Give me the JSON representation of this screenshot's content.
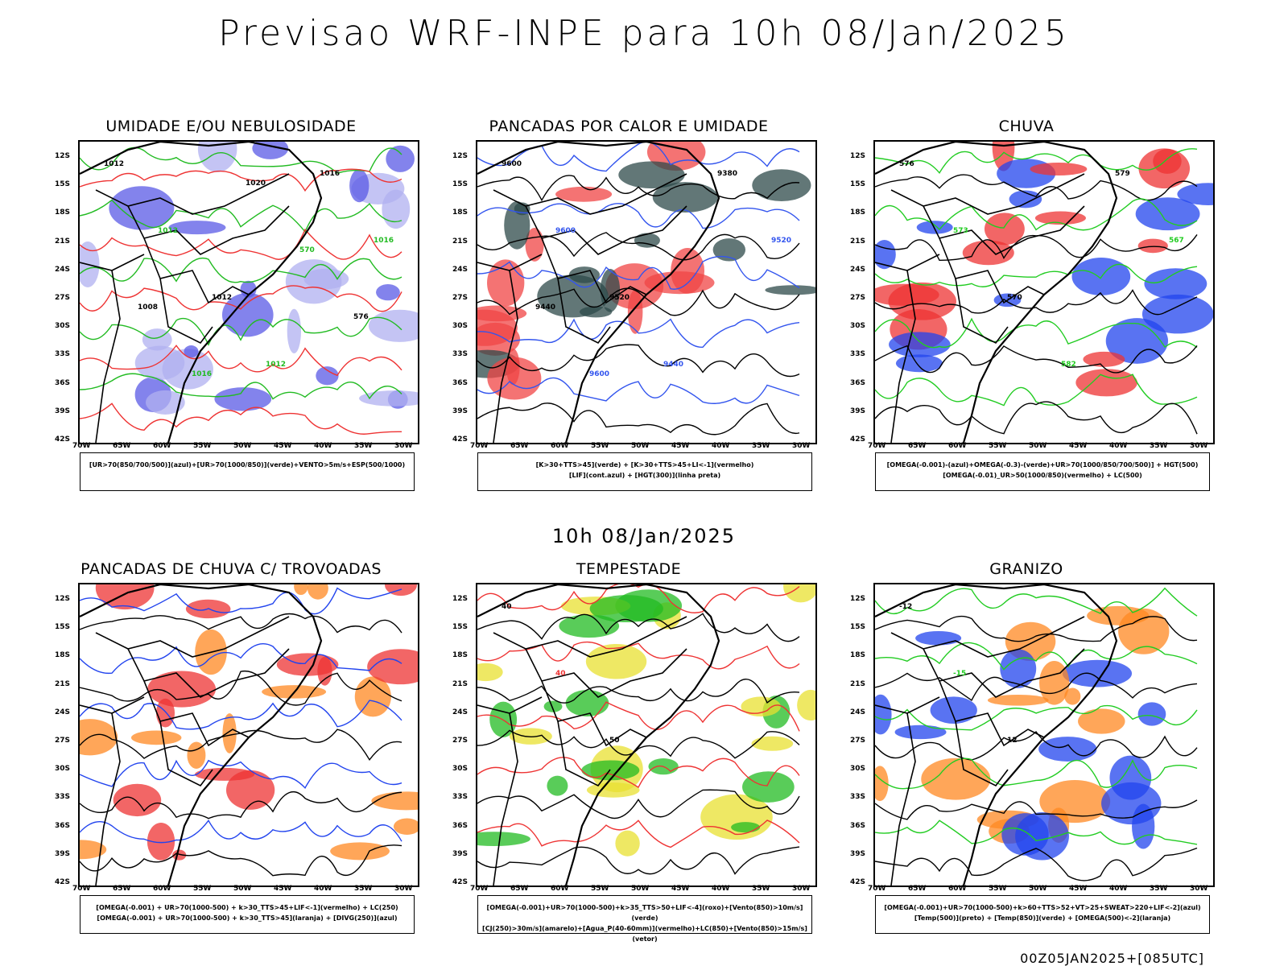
{
  "header": {
    "title": "Previsao WRF-INPE  para 10h 08/Jan/2025",
    "subtitle": "10h 08/Jan/2025",
    "footer": "00Z05JAN2025+[085UTC]"
  },
  "axes": {
    "lat_labels": [
      "12S",
      "15S",
      "18S",
      "21S",
      "24S",
      "27S",
      "30S",
      "33S",
      "36S",
      "39S",
      "42S"
    ],
    "lon_labels": [
      "70W",
      "65W",
      "60W",
      "55W",
      "50W",
      "45W",
      "40W",
      "35W",
      "30W"
    ]
  },
  "panels": [
    {
      "id": "umidade",
      "title": "UMIDADE E/OU NEBULOSIDADE",
      "legend_lines": [
        "[UR>70(850/700/500)](azul)+[UR>70(1000/850)](verde)+VENTO>5m/s+ESP(500/1000)"
      ],
      "contour_labels": [
        "1012",
        "1012",
        "1012",
        "1012",
        "1016",
        "1016",
        "1008",
        "1016",
        "1020",
        "570",
        "576"
      ],
      "colors": {
        "fill1": "#5a5ae6",
        "fill2": "#b0b0f0",
        "line1": "#22bb22",
        "line2": "#ee3333"
      }
    },
    {
      "id": "pancadas_calor",
      "title": "PANCADAS POR CALOR E UMIDADE",
      "legend_lines": [
        "[K>30+TTS>45](verde)  +  [K>30+TTS>45+LI<-1](vermelho)",
        "[LIF](cont.azul)  +  [HGT(300)](linha preta)"
      ],
      "contour_labels": [
        "9600",
        "9600",
        "9520",
        "9440",
        "9380",
        "9520",
        "9440",
        "9600"
      ],
      "colors": {
        "fill1": "#f04444",
        "fill2": "#2d4a4a",
        "line1": "#3355ee",
        "line2": "#000000"
      }
    },
    {
      "id": "chuva",
      "title": "CHUVA",
      "legend_lines": [
        "[OMEGA(-0.001)-(azul)+OMEGA(-0.3)-(verde)+UR>70(1000/850/700/500)] + HGT(500)",
        "[OMEGA(-0.01)_UR>50(1000/850)(vermelho) + LC(500)"
      ],
      "contour_labels": [
        "576",
        "573",
        "570",
        "582",
        "579",
        "567"
      ],
      "colors": {
        "fill1": "#2244ee",
        "fill2": "#ee3333",
        "line1": "#22cc22",
        "line2": "#000000"
      }
    },
    {
      "id": "trovoadas",
      "title": "PANCADAS DE CHUVA C/ TROVOADAS",
      "legend_lines": [
        "[OMEGA(-0.001) + UR>70(1000-500) + k>30_TTS>45+LIF<-1](vermelho) + LC(250)",
        "[OMEGA(-0.001) + UR>70(1000-500) + k>30_TTS>45](laranja) + [DIVG(250)](azul)"
      ],
      "contour_labels": [],
      "colors": {
        "fill1": "#ee3333",
        "fill2": "#ff8822",
        "line1": "#2244ee",
        "line2": "#000000"
      }
    },
    {
      "id": "tempestade",
      "title": "TEMPESTADE",
      "legend_lines": [
        "[OMEGA(-0.001)+UR>70(1000-500)+k>35_TTS>50+LIF<-4](roxo)+[Vento(850)>10m/s](verde)",
        "[CJ(250)>30m/s](amarelo)+[Agua_P(40-60mm)](vermelho)+LC(850)+[Vento(850)>15m/s](vetor)"
      ],
      "contour_labels": [
        "40",
        "40",
        "50"
      ],
      "colors": {
        "fill1": "#e8e030",
        "fill2": "#22bb22",
        "line1": "#ee3333",
        "line2": "#000000"
      }
    },
    {
      "id": "granizo",
      "title": "GRANIZO",
      "legend_lines": [
        "[OMEGA(-0.001)+UR>70(1000-500)+k>60+TTS>52+VT>25+SWEAT>220+LIF<-2](azul)",
        "[Temp(500)](preto) + [Temp(850)](verde) + [OMEGA(500)<-2](laranja)"
      ],
      "contour_labels": [
        "-12",
        "-15",
        "12"
      ],
      "colors": {
        "fill1": "#ff8822",
        "fill2": "#2244ee",
        "line1": "#22cc22",
        "line2": "#000000"
      }
    }
  ]
}
